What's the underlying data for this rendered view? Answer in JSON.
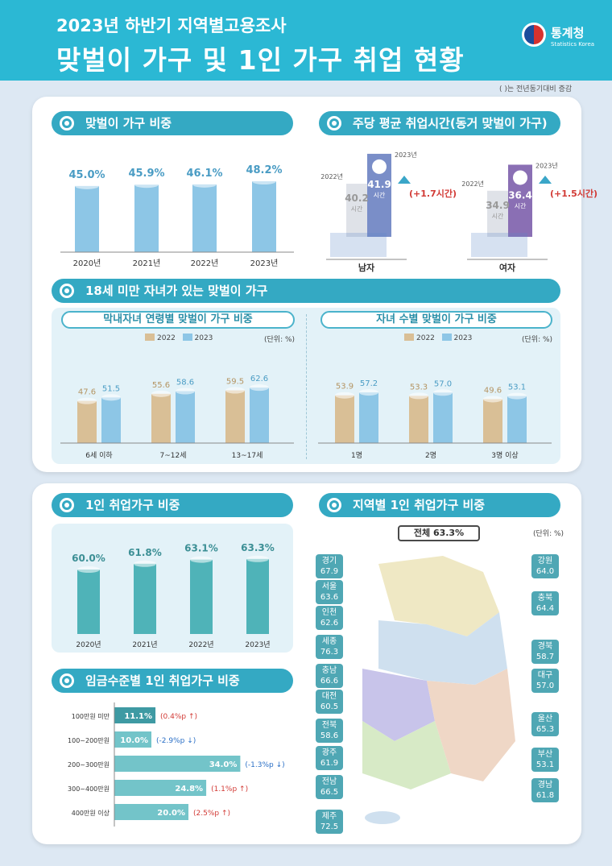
{
  "header": {
    "title": "2023년 하반기 지역별고용조사",
    "subtitle": "맞벌이 가구 및 1인 가구 취업 현황",
    "logo_text": "통계청",
    "logo_sub": "Statistics Korea"
  },
  "note": "(  )는 전년동기대비 증감",
  "sections": {
    "dual_ratio": "맞벌이 가구 비중",
    "work_hours": "주당 평균 취업시간(동거 맞벌이 가구)",
    "dual_children": "18세 미만 자녀가 있는 맞벌이 가구",
    "by_age": "막내자녀 연령별 맞벌이 가구 비중",
    "by_count": "자녀 수별 맞벌이 가구 비중",
    "single_ratio": "1인 취업가구 비중",
    "single_wage": "임금수준별 1인 취업가구 비중",
    "regional": "지역별 1인 취업가구 비중"
  },
  "legend": {
    "y2022": "2022",
    "y2023": "2023",
    "unit": "(단위: %)"
  },
  "colors": {
    "teal": "#34a9c3",
    "bar_blue": "#8dc6e6",
    "bar_tan": "#d9bf96",
    "bar_teal": "#4fb3b8",
    "wage_teal": "#73c4c9",
    "up": "#d23a35",
    "down": "#2a6fc6"
  },
  "chart_data": [
    {
      "id": "dual_ratio",
      "type": "bar",
      "categories": [
        "2020년",
        "2021년",
        "2022년",
        "2023년"
      ],
      "values": [
        45.0,
        45.9,
        46.1,
        48.2
      ],
      "labels": [
        "45.0%",
        "45.9%",
        "46.1%",
        "48.2%"
      ]
    },
    {
      "id": "work_hours",
      "type": "bar",
      "groups": [
        {
          "name": "남자",
          "y2022": 40.2,
          "y2023": 41.9,
          "v2022": "40.2",
          "v2023": "41.9",
          "unit": "시간",
          "change": "(+1.7시간)",
          "tag2022": "2022년",
          "tag2023": "2023년"
        },
        {
          "name": "여자",
          "y2022": 34.9,
          "y2023": 36.4,
          "v2022": "34.9",
          "v2023": "36.4",
          "unit": "시간",
          "change": "(+1.5시간)",
          "tag2022": "2022년",
          "tag2023": "2023년"
        }
      ]
    },
    {
      "id": "by_age",
      "type": "bar",
      "categories": [
        "6세 이하",
        "7~12세",
        "13~17세"
      ],
      "series": [
        {
          "name": "2022",
          "values": [
            47.6,
            55.6,
            59.5
          ],
          "labels": [
            "47.6",
            "55.6",
            "59.5"
          ]
        },
        {
          "name": "2023",
          "values": [
            51.5,
            58.6,
            62.6
          ],
          "labels": [
            "51.5",
            "58.6",
            "62.6"
          ]
        }
      ]
    },
    {
      "id": "by_count",
      "type": "bar",
      "categories": [
        "1명",
        "2명",
        "3명 이상"
      ],
      "series": [
        {
          "name": "2022",
          "values": [
            53.9,
            53.3,
            49.6
          ],
          "labels": [
            "53.9",
            "53.3",
            "49.6"
          ]
        },
        {
          "name": "2023",
          "values": [
            57.2,
            57.0,
            53.1
          ],
          "labels": [
            "57.2",
            "57.0",
            "53.1"
          ]
        }
      ]
    },
    {
      "id": "single_ratio",
      "type": "bar",
      "categories": [
        "2020년",
        "2021년",
        "2022년",
        "2023년"
      ],
      "values": [
        60.0,
        61.8,
        63.1,
        63.3
      ],
      "labels": [
        "60.0%",
        "61.8%",
        "63.1%",
        "63.3%"
      ]
    },
    {
      "id": "single_wage",
      "type": "bar",
      "categories": [
        "100만원 미만",
        "100~200만원",
        "200~300만원",
        "300~400만원",
        "400만원 이상"
      ],
      "values": [
        11.1,
        10.0,
        34.0,
        24.8,
        20.0
      ],
      "labels": [
        "11.1%",
        "10.0%",
        "34.0%",
        "24.8%",
        "20.0%"
      ],
      "changes": [
        "(0.4%p ↑)",
        "(-2.9%p ↓)",
        "(-1.3%p ↓)",
        "(1.1%p ↑)",
        "(2.5%p ↑)"
      ],
      "directions": [
        "up",
        "down",
        "down",
        "up",
        "up"
      ]
    },
    {
      "id": "regional",
      "type": "table",
      "total": "전체 63.3%",
      "unit": "(단위: %)",
      "regions": [
        {
          "name": "경기",
          "value": "67.9"
        },
        {
          "name": "서울",
          "value": "63.6"
        },
        {
          "name": "인천",
          "value": "62.6"
        },
        {
          "name": "세종",
          "value": "76.3"
        },
        {
          "name": "충남",
          "value": "66.6"
        },
        {
          "name": "대전",
          "value": "60.5"
        },
        {
          "name": "전북",
          "value": "58.6"
        },
        {
          "name": "광주",
          "value": "61.9"
        },
        {
          "name": "전남",
          "value": "66.5"
        },
        {
          "name": "제주",
          "value": "72.5"
        },
        {
          "name": "강원",
          "value": "64.0"
        },
        {
          "name": "충북",
          "value": "64.4"
        },
        {
          "name": "경북",
          "value": "58.7"
        },
        {
          "name": "대구",
          "value": "57.0"
        },
        {
          "name": "울산",
          "value": "65.3"
        },
        {
          "name": "부산",
          "value": "53.1"
        },
        {
          "name": "경남",
          "value": "61.8"
        }
      ]
    }
  ]
}
